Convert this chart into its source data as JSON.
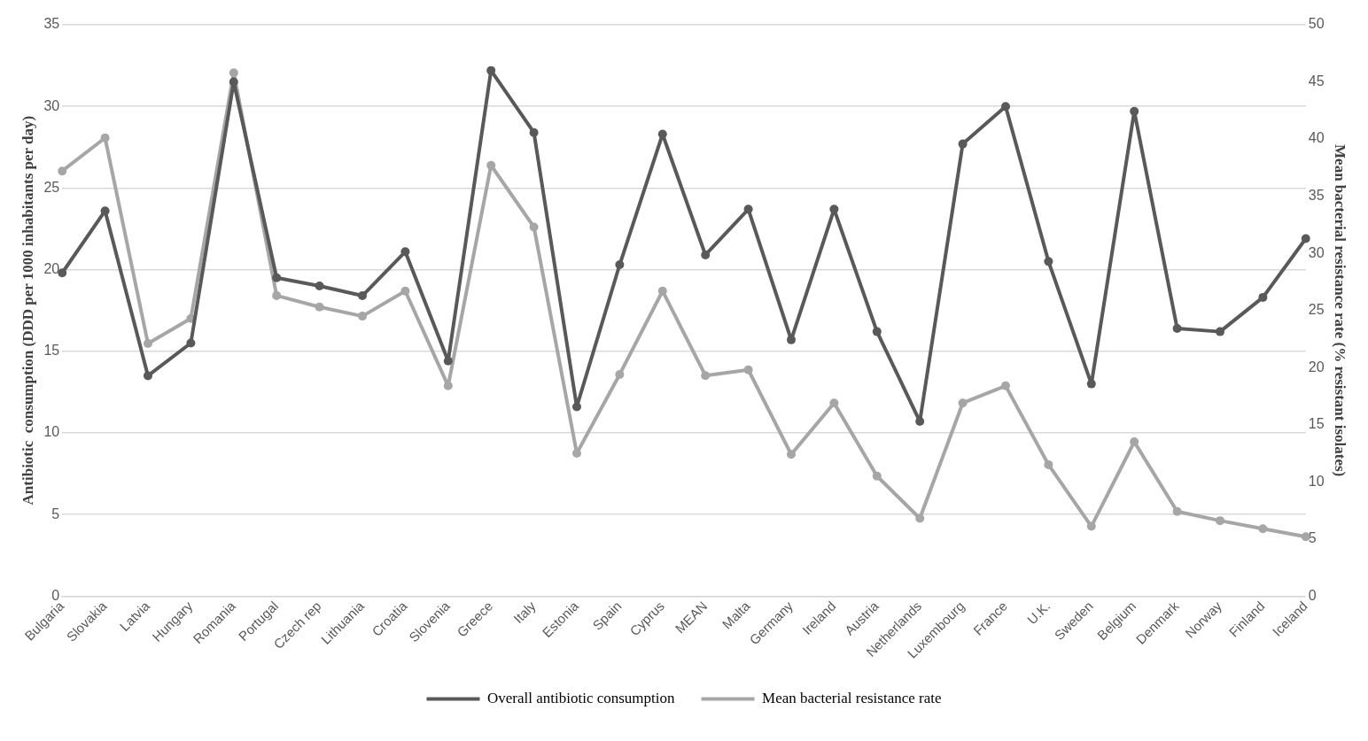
{
  "chart_data": {
    "type": "line",
    "ylabel": "Antibiotic  consumption (DDD per 1000 inhabitants per day)",
    "y2label": "Mean bacterial resistance rate (% resistant isolates)",
    "categories": [
      "Bulgaria",
      "Slovakia",
      "Latvia",
      "Hungary",
      "Romania",
      "Portugal",
      "Czech rep",
      "Lithuania",
      "Croatia",
      "Slovenia",
      "Greece",
      "Italy",
      "Estonia",
      "Spain",
      "Cyprus",
      "MEAN",
      "Malta",
      "Germany",
      "Ireland",
      "Austria",
      "Netherlands",
      "Luxembourg",
      "France",
      "U.K.",
      "Sweden",
      "Belgium",
      "Denmark",
      "Norway",
      "Finland",
      "Iceland"
    ],
    "series": [
      {
        "name": "Overall antibiotic consumption",
        "color": "#595959",
        "values": [
          19.8,
          23.6,
          13.5,
          15.5,
          31.5,
          19.5,
          19.0,
          18.4,
          21.1,
          14.4,
          32.2,
          28.4,
          11.6,
          20.3,
          28.3,
          20.9,
          23.7,
          15.7,
          23.7,
          16.2,
          10.7,
          27.7,
          30.0,
          20.5,
          13.0,
          29.7,
          16.4,
          16.2,
          18.3,
          21.9
        ]
      },
      {
        "name": "Mean bacterial resistance rate",
        "color": "#a6a6a6",
        "axis": "y2",
        "values": [
          37.2,
          40.1,
          22.1,
          24.3,
          45.8,
          26.3,
          25.3,
          24.5,
          26.7,
          18.4,
          37.7,
          32.3,
          12.5,
          19.4,
          26.7,
          19.3,
          19.8,
          12.4,
          16.9,
          10.5,
          6.8,
          16.9,
          18.4,
          11.5,
          6.1,
          13.5,
          7.4,
          6.6,
          5.9,
          5.2
        ]
      }
    ],
    "ylim": [
      0,
      35
    ],
    "yticks": [
      0,
      5,
      10,
      15,
      20,
      25,
      30,
      35
    ],
    "y2lim": [
      0,
      50
    ],
    "y2ticks": [
      0,
      5,
      10,
      15,
      20,
      25,
      30,
      35,
      40,
      45,
      50
    ],
    "grid": "y",
    "legend": "bottom",
    "marker": "circle",
    "line_style": "solid"
  }
}
